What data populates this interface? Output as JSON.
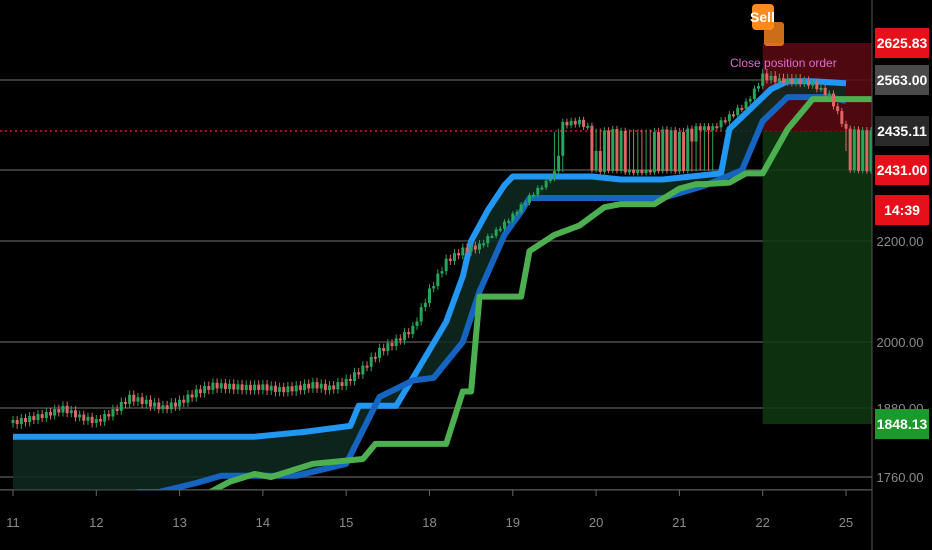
{
  "chart_data": {
    "type": "candlestick",
    "x_ticks": [
      "11",
      "12",
      "13",
      "14",
      "15",
      "18",
      "19",
      "20",
      "21",
      "22",
      "25"
    ],
    "y_ticks": [
      "2200.00",
      "2000.00",
      "1880.00",
      "1760.00"
    ],
    "price_badges": [
      {
        "value": "2625.83",
        "color": "#e5101a",
        "kind": "sell-order"
      },
      {
        "value": "2563.00",
        "color": "#4a4a4a",
        "kind": "level"
      },
      {
        "value": "2435.11",
        "color": "#2a2a2a",
        "kind": "level"
      },
      {
        "value": "2431.00",
        "color": "#e5101a",
        "kind": "last-price"
      },
      {
        "value": "14:39",
        "color": "#e5101a",
        "kind": "countdown"
      },
      {
        "value": "1848.13",
        "color": "#1a9a2a",
        "kind": "target"
      }
    ],
    "annotations": {
      "sell_label": "Sell",
      "close_order_label": "Close position order"
    },
    "candles": [
      {
        "t": 0,
        "close": 1850
      },
      {
        "t": 0.2,
        "close": 1858
      },
      {
        "t": 0.4,
        "close": 1866
      },
      {
        "t": 0.6,
        "close": 1878
      },
      {
        "t": 0.8,
        "close": 1861
      },
      {
        "t": 1.0,
        "close": 1852
      },
      {
        "t": 1.2,
        "close": 1872
      },
      {
        "t": 1.4,
        "close": 1898
      },
      {
        "t": 1.6,
        "close": 1889
      },
      {
        "t": 1.8,
        "close": 1879
      },
      {
        "t": 2.0,
        "close": 1889
      },
      {
        "t": 2.2,
        "close": 1908
      },
      {
        "t": 2.4,
        "close": 1920
      },
      {
        "t": 2.6,
        "close": 1918
      },
      {
        "t": 2.8,
        "close": 1916
      },
      {
        "t": 3.0,
        "close": 1917
      },
      {
        "t": 3.2,
        "close": 1912
      },
      {
        "t": 3.4,
        "close": 1915
      },
      {
        "t": 3.6,
        "close": 1921
      },
      {
        "t": 3.8,
        "close": 1915
      },
      {
        "t": 4.0,
        "close": 1927
      },
      {
        "t": 4.2,
        "close": 1951
      },
      {
        "t": 4.4,
        "close": 1983
      },
      {
        "t": 4.6,
        "close": 2001
      },
      {
        "t": 4.8,
        "close": 2026
      },
      {
        "t": 5.0,
        "close": 2100
      },
      {
        "t": 5.2,
        "close": 2159
      },
      {
        "t": 5.4,
        "close": 2181
      },
      {
        "t": 5.6,
        "close": 2189
      },
      {
        "t": 5.8,
        "close": 2231
      },
      {
        "t": 6.0,
        "close": 2283
      },
      {
        "t": 6.2,
        "close": 2343
      },
      {
        "t": 6.4,
        "close": 2390
      },
      {
        "t": 6.6,
        "close": 2452
      },
      {
        "t": 6.8,
        "close": 2457
      },
      {
        "t": 7.0,
        "close": 2427
      },
      {
        "t": 7.2,
        "close": 2434
      },
      {
        "t": 7.4,
        "close": 2425
      },
      {
        "t": 7.6,
        "close": 2425
      },
      {
        "t": 7.8,
        "close": 2433
      },
      {
        "t": 8.0,
        "close": 2429
      },
      {
        "t": 8.2,
        "close": 2441
      },
      {
        "t": 8.4,
        "close": 2441
      },
      {
        "t": 8.6,
        "close": 2471
      },
      {
        "t": 8.8,
        "close": 2503
      },
      {
        "t": 9.0,
        "close": 2568
      },
      {
        "t": 9.2,
        "close": 2560
      },
      {
        "t": 9.4,
        "close": 2559
      },
      {
        "t": 9.6,
        "close": 2551
      },
      {
        "t": 9.8,
        "close": 2523
      },
      {
        "t": 10.0,
        "close": 2435
      },
      {
        "t": 10.2,
        "close": 2431
      }
    ],
    "series": [
      {
        "color": "#2196f3",
        "values": [
          [
            0,
            1827
          ],
          [
            1.3,
            1827
          ],
          [
            2.9,
            1827
          ],
          [
            3.5,
            1835
          ],
          [
            4.05,
            1845
          ],
          [
            4.15,
            1884
          ],
          [
            4.6,
            1884
          ],
          [
            4.9,
            1960
          ],
          [
            5.2,
            2040
          ],
          [
            5.4,
            2130
          ],
          [
            5.5,
            2200
          ],
          [
            5.7,
            2300
          ],
          [
            5.9,
            2382
          ],
          [
            6.0,
            2410
          ],
          [
            6.1,
            2410
          ],
          [
            6.95,
            2410
          ],
          [
            7.3,
            2400
          ],
          [
            7.8,
            2400
          ],
          [
            8.5,
            2420
          ],
          [
            8.6,
            2440
          ],
          [
            8.9,
            2500
          ],
          [
            9.1,
            2540
          ],
          [
            9.3,
            2560
          ],
          [
            9.6,
            2560
          ],
          [
            10.0,
            2555
          ]
        ]
      },
      {
        "color": "#1565c0",
        "values": [
          [
            0,
            1710
          ],
          [
            1.2,
            1710
          ],
          [
            1.5,
            1735
          ],
          [
            1.75,
            1735
          ],
          [
            2.2,
            1750
          ],
          [
            2.5,
            1762
          ],
          [
            3.4,
            1762
          ],
          [
            4.0,
            1782
          ],
          [
            4.4,
            1900
          ],
          [
            4.8,
            1930
          ],
          [
            5.05,
            1935
          ],
          [
            5.4,
            2000
          ],
          [
            5.6,
            2100
          ],
          [
            5.9,
            2220
          ],
          [
            6.1,
            2295
          ],
          [
            6.2,
            2340
          ],
          [
            6.6,
            2340
          ],
          [
            7.2,
            2340
          ],
          [
            7.8,
            2340
          ],
          [
            8.3,
            2380
          ],
          [
            8.75,
            2430
          ],
          [
            9.0,
            2460
          ],
          [
            9.3,
            2520
          ],
          [
            9.5,
            2520
          ],
          [
            9.8,
            2520
          ],
          [
            10.0,
            2510
          ]
        ]
      },
      {
        "color": "#4caf50",
        "values": [
          [
            1.1,
            1660
          ],
          [
            1.4,
            1685
          ],
          [
            2.0,
            1685
          ],
          [
            2.3,
            1730
          ],
          [
            2.6,
            1752
          ],
          [
            2.9,
            1765
          ],
          [
            3.1,
            1760
          ],
          [
            3.6,
            1782
          ],
          [
            4.2,
            1790
          ],
          [
            4.35,
            1815
          ],
          [
            5.2,
            1815
          ],
          [
            5.4,
            1910
          ],
          [
            5.5,
            1910
          ],
          [
            5.6,
            2090
          ],
          [
            6.1,
            2090
          ],
          [
            6.2,
            2180
          ],
          [
            6.5,
            2220
          ],
          [
            6.8,
            2250
          ],
          [
            7.1,
            2310
          ],
          [
            7.3,
            2320
          ],
          [
            7.7,
            2320
          ],
          [
            8.0,
            2370
          ],
          [
            8.2,
            2385
          ],
          [
            8.3,
            2385
          ],
          [
            8.6,
            2390
          ],
          [
            8.8,
            2420
          ],
          [
            9.0,
            2420
          ],
          [
            9.3,
            2440
          ],
          [
            9.5,
            2490
          ],
          [
            9.6,
            2515
          ],
          [
            9.9,
            2515
          ],
          [
            10.5,
            2515
          ]
        ]
      }
    ]
  }
}
